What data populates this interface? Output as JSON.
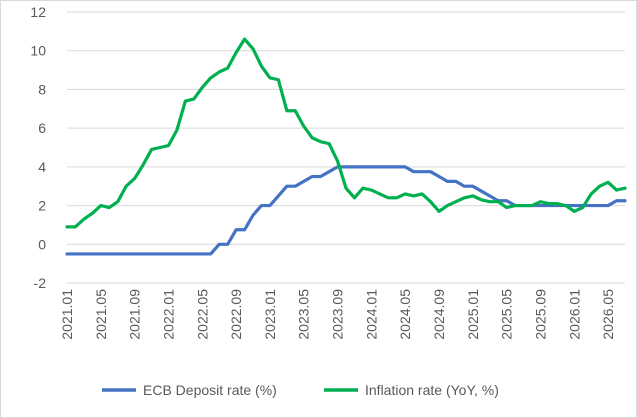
{
  "chart_data": {
    "type": "line",
    "title": "",
    "xlabel": "",
    "ylabel": "",
    "ylim": [
      -2,
      12
    ],
    "yticks": [
      -2,
      0,
      2,
      4,
      6,
      8,
      10,
      12
    ],
    "grid": "horizontal",
    "legend": "bottom",
    "x_tick_labels": [
      "2021.01",
      "2021.05",
      "2021.09",
      "2022.01",
      "2022.05",
      "2022.09",
      "2023.01",
      "2023.05",
      "2023.09",
      "2024.01",
      "2024.05",
      "2024.09",
      "2025.01",
      "2025.05",
      "2025.09",
      "2026.01",
      "2026.05"
    ],
    "x": [
      "2021.01",
      "2021.02",
      "2021.03",
      "2021.04",
      "2021.05",
      "2021.06",
      "2021.07",
      "2021.08",
      "2021.09",
      "2021.10",
      "2021.11",
      "2021.12",
      "2022.01",
      "2022.02",
      "2022.03",
      "2022.04",
      "2022.05",
      "2022.06",
      "2022.07",
      "2022.08",
      "2022.09",
      "2022.10",
      "2022.11",
      "2022.12",
      "2023.01",
      "2023.02",
      "2023.03",
      "2023.04",
      "2023.05",
      "2023.06",
      "2023.07",
      "2023.08",
      "2023.09",
      "2023.10",
      "2023.11",
      "2023.12",
      "2024.01",
      "2024.02",
      "2024.03",
      "2024.04",
      "2024.05",
      "2024.06",
      "2024.07",
      "2024.08",
      "2024.09",
      "2024.10",
      "2024.11",
      "2024.12",
      "2025.01",
      "2025.02",
      "2025.03",
      "2025.04",
      "2025.05",
      "2025.06",
      "2025.07",
      "2025.08",
      "2025.09",
      "2025.10",
      "2025.11",
      "2025.12",
      "2026.01",
      "2026.02",
      "2026.03",
      "2026.04",
      "2026.05",
      "2026.06",
      "2026.07"
    ],
    "series": [
      {
        "name": "ECB Deposit rate (%)",
        "color": "#4472c4",
        "values": [
          -0.5,
          -0.5,
          -0.5,
          -0.5,
          -0.5,
          -0.5,
          -0.5,
          -0.5,
          -0.5,
          -0.5,
          -0.5,
          -0.5,
          -0.5,
          -0.5,
          -0.5,
          -0.5,
          -0.5,
          -0.5,
          0.0,
          0.0,
          0.75,
          0.75,
          1.5,
          2.0,
          2.0,
          2.5,
          3.0,
          3.0,
          3.25,
          3.5,
          3.5,
          3.75,
          4.0,
          4.0,
          4.0,
          4.0,
          4.0,
          4.0,
          4.0,
          4.0,
          4.0,
          3.75,
          3.75,
          3.75,
          3.5,
          3.25,
          3.25,
          3.0,
          3.0,
          2.75,
          2.5,
          2.25,
          2.25,
          2.0,
          2.0,
          2.0,
          2.0,
          2.0,
          2.0,
          2.0,
          2.0,
          2.0,
          2.0,
          2.0,
          2.0,
          2.25,
          2.25
        ]
      },
      {
        "name": "Inflation rate (YoY, %)",
        "color": "#00b050",
        "values": [
          0.9,
          0.9,
          1.3,
          1.6,
          2.0,
          1.9,
          2.2,
          3.0,
          3.4,
          4.1,
          4.9,
          5.0,
          5.1,
          5.9,
          7.4,
          7.5,
          8.1,
          8.6,
          8.9,
          9.1,
          9.9,
          10.6,
          10.1,
          9.2,
          8.6,
          8.5,
          6.9,
          6.9,
          6.1,
          5.5,
          5.3,
          5.2,
          4.3,
          2.9,
          2.4,
          2.9,
          2.8,
          2.6,
          2.4,
          2.4,
          2.6,
          2.5,
          2.6,
          2.2,
          1.7,
          2.0,
          2.2,
          2.4,
          2.5,
          2.3,
          2.2,
          2.2,
          1.9,
          2.0,
          2.0,
          2.0,
          2.2,
          2.1,
          2.1,
          2.0,
          1.7,
          1.9,
          2.6,
          3.0,
          3.2,
          2.8,
          2.9
        ]
      }
    ]
  }
}
